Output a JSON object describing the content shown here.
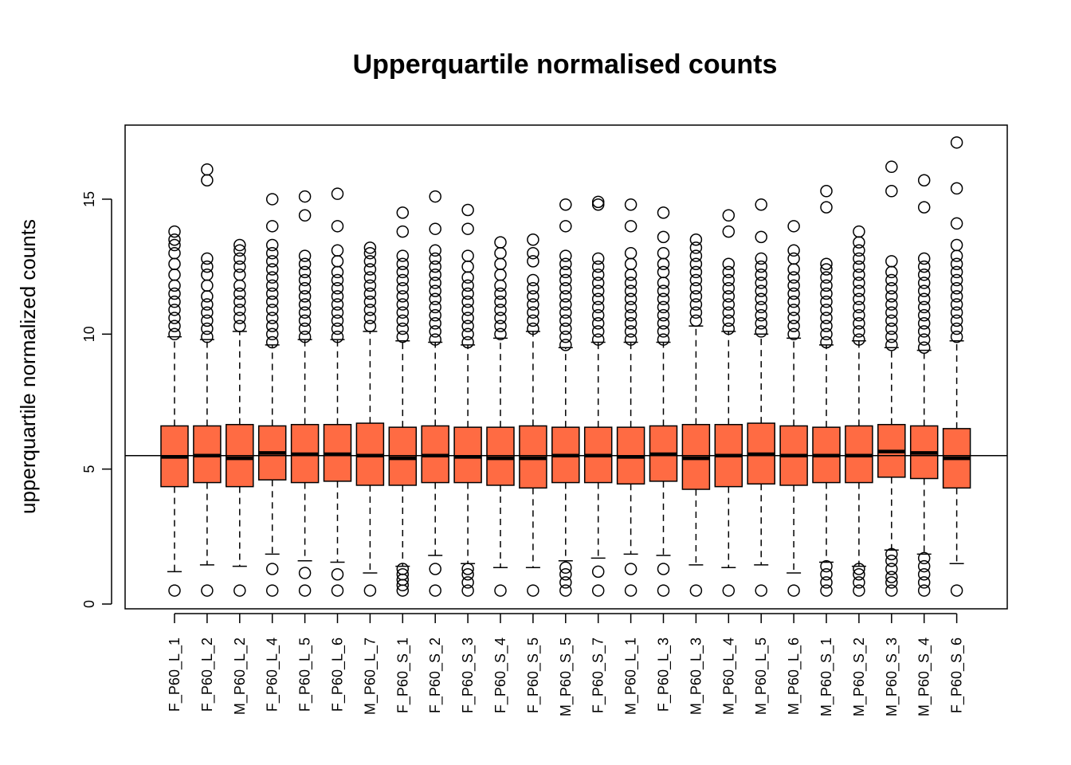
{
  "chart_data": {
    "type": "boxplot",
    "title": "Upperquartile normalised counts",
    "xlabel": "",
    "ylabel": "upperquartile normalized counts",
    "ylim": [
      -0.1,
      17.5
    ],
    "yticks": [
      0,
      5,
      10,
      15
    ],
    "grid": false,
    "legend": "none",
    "reference_line": 5.5,
    "box_color": "#ff6b43",
    "categories": [
      "F_P60_L_1",
      "F_P60_L_2",
      "M_P60_L_2",
      "F_P60_L_4",
      "F_P60_L_5",
      "F_P60_L_6",
      "M_P60_L_7",
      "F_P60_S_1",
      "F_P60_S_2",
      "F_P60_S_3",
      "F_P60_S_4",
      "F_P60_S_5",
      "M_P60_S_5",
      "F_P60_S_7",
      "M_P60_L_1",
      "F_P60_L_3",
      "M_P60_L_3",
      "M_P60_L_4",
      "M_P60_L_5",
      "M_P60_L_6",
      "M_P60_S_1",
      "M_P60_S_2",
      "M_P60_S_3",
      "M_P60_S_4",
      "F_P60_S_6"
    ],
    "boxes": [
      {
        "lower_whisker": 1.2,
        "q1": 4.35,
        "median": 5.45,
        "q3": 6.6,
        "upper_whisker": 9.9,
        "outliers_high": [
          10,
          10.3,
          10.6,
          10.9,
          11.2,
          11.5,
          11.8,
          12.2,
          12.6,
          13.0,
          13.3,
          13.5,
          13.8
        ],
        "outliers_low": [
          0.5
        ]
      },
      {
        "lower_whisker": 1.45,
        "q1": 4.5,
        "median": 5.5,
        "q3": 6.6,
        "upper_whisker": 9.8,
        "outliers_high": [
          9.9,
          10.2,
          10.5,
          10.8,
          11.1,
          11.4,
          11.8,
          12.2,
          12.5,
          12.8,
          15.7,
          16.1
        ],
        "outliers_low": [
          0.5
        ]
      },
      {
        "lower_whisker": 1.4,
        "q1": 4.35,
        "median": 5.4,
        "q3": 6.65,
        "upper_whisker": 10.1,
        "outliers_high": [
          10.3,
          10.6,
          10.9,
          11.2,
          11.5,
          11.8,
          12.2,
          12.5,
          12.8,
          13.1,
          13.3
        ],
        "outliers_low": [
          0.5
        ]
      },
      {
        "lower_whisker": 1.85,
        "q1": 4.6,
        "median": 5.6,
        "q3": 6.6,
        "upper_whisker": 9.6,
        "outliers_high": [
          9.7,
          10,
          10.3,
          10.6,
          10.9,
          11.2,
          11.5,
          11.8,
          12.1,
          12.4,
          12.7,
          13.0,
          13.3,
          14.0,
          15.0
        ],
        "outliers_low": [
          1.3,
          0.5
        ]
      },
      {
        "lower_whisker": 1.6,
        "q1": 4.5,
        "median": 5.55,
        "q3": 6.65,
        "upper_whisker": 9.8,
        "outliers_high": [
          9.9,
          10.2,
          10.5,
          10.8,
          11.1,
          11.4,
          11.7,
          12.0,
          12.3,
          12.6,
          12.9,
          14.4,
          15.1
        ],
        "outliers_low": [
          1.15,
          0.5
        ]
      },
      {
        "lower_whisker": 1.55,
        "q1": 4.55,
        "median": 5.55,
        "q3": 6.65,
        "upper_whisker": 9.8,
        "outliers_high": [
          9.9,
          10.2,
          10.5,
          10.8,
          11.1,
          11.4,
          11.7,
          12.0,
          12.3,
          12.7,
          13.1,
          14.0,
          15.2
        ],
        "outliers_low": [
          1.1,
          0.5
        ]
      },
      {
        "lower_whisker": 1.15,
        "q1": 4.4,
        "median": 5.5,
        "q3": 6.7,
        "upper_whisker": 10.1,
        "outliers_high": [
          10.3,
          10.6,
          10.9,
          11.2,
          11.5,
          11.8,
          12.1,
          12.4,
          12.7,
          13.0,
          13.2
        ],
        "outliers_low": [
          0.5
        ]
      },
      {
        "lower_whisker": 1.4,
        "q1": 4.4,
        "median": 5.4,
        "q3": 6.55,
        "upper_whisker": 9.75,
        "outliers_high": [
          9.9,
          10.2,
          10.5,
          10.8,
          11.1,
          11.4,
          11.7,
          12.0,
          12.3,
          12.6,
          12.9,
          13.8,
          14.5
        ],
        "outliers_low": [
          1.3,
          1.1,
          0.9,
          0.7,
          0.5
        ]
      },
      {
        "lower_whisker": 1.8,
        "q1": 4.5,
        "median": 5.5,
        "q3": 6.6,
        "upper_whisker": 9.7,
        "outliers_high": [
          9.8,
          10.1,
          10.4,
          10.7,
          11.0,
          11.3,
          11.6,
          11.9,
          12.2,
          12.5,
          12.8,
          13.1,
          13.9,
          15.1
        ],
        "outliers_low": [
          1.3,
          0.5
        ]
      },
      {
        "lower_whisker": 1.5,
        "q1": 4.5,
        "median": 5.45,
        "q3": 6.55,
        "upper_whisker": 9.6,
        "outliers_high": [
          9.7,
          10.0,
          10.3,
          10.6,
          10.9,
          11.2,
          11.5,
          11.8,
          12.1,
          12.5,
          12.9,
          13.9,
          14.6
        ],
        "outliers_low": [
          1.3,
          1.1,
          0.8,
          0.5
        ]
      },
      {
        "lower_whisker": 1.35,
        "q1": 4.4,
        "median": 5.4,
        "q3": 6.55,
        "upper_whisker": 9.85,
        "outliers_high": [
          10.0,
          10.3,
          10.6,
          10.9,
          11.2,
          11.5,
          11.8,
          12.2,
          12.6,
          13.0,
          13.4
        ],
        "outliers_low": [
          0.5
        ]
      },
      {
        "lower_whisker": 1.35,
        "q1": 4.3,
        "median": 5.4,
        "q3": 6.6,
        "upper_whisker": 10.1,
        "outliers_high": [
          10.2,
          10.5,
          10.8,
          11.1,
          11.4,
          11.7,
          12.0,
          12.7,
          13.0,
          13.5
        ],
        "outliers_low": [
          0.5
        ]
      },
      {
        "lower_whisker": 1.6,
        "q1": 4.5,
        "median": 5.5,
        "q3": 6.55,
        "upper_whisker": 9.5,
        "outliers_high": [
          9.6,
          9.9,
          10.2,
          10.5,
          10.8,
          11.1,
          11.4,
          11.7,
          12.0,
          12.3,
          12.6,
          12.9,
          14.0,
          14.8
        ],
        "outliers_low": [
          1.35,
          1.1,
          0.8,
          0.5
        ]
      },
      {
        "lower_whisker": 1.7,
        "q1": 4.5,
        "median": 5.5,
        "q3": 6.55,
        "upper_whisker": 9.7,
        "outliers_high": [
          9.8,
          10.1,
          10.4,
          10.7,
          11.0,
          11.3,
          11.6,
          11.9,
          12.2,
          12.5,
          12.8,
          14.8,
          14.9
        ],
        "outliers_low": [
          1.2,
          0.5
        ]
      },
      {
        "lower_whisker": 1.85,
        "q1": 4.45,
        "median": 5.45,
        "q3": 6.55,
        "upper_whisker": 9.7,
        "outliers_high": [
          9.8,
          10.1,
          10.4,
          10.7,
          11.0,
          11.3,
          11.6,
          11.9,
          12.2,
          12.6,
          13.0,
          14.0,
          14.8
        ],
        "outliers_low": [
          1.3,
          0.5
        ]
      },
      {
        "lower_whisker": 1.8,
        "q1": 4.55,
        "median": 5.55,
        "q3": 6.6,
        "upper_whisker": 9.7,
        "outliers_high": [
          9.8,
          10.1,
          10.4,
          10.7,
          11.0,
          11.3,
          11.6,
          11.9,
          12.3,
          12.6,
          13.0,
          13.6,
          14.5
        ],
        "outliers_low": [
          1.3,
          0.5
        ]
      },
      {
        "lower_whisker": 1.45,
        "q1": 4.25,
        "median": 5.4,
        "q3": 6.65,
        "upper_whisker": 10.3,
        "outliers_high": [
          10.5,
          10.8,
          11.1,
          11.4,
          11.7,
          12.0,
          12.3,
          12.6,
          12.9,
          13.2,
          13.5
        ],
        "outliers_low": [
          0.5
        ]
      },
      {
        "lower_whisker": 1.35,
        "q1": 4.35,
        "median": 5.5,
        "q3": 6.65,
        "upper_whisker": 10.1,
        "outliers_high": [
          10.2,
          10.5,
          10.8,
          11.1,
          11.4,
          11.7,
          12.0,
          12.3,
          12.6,
          13.8,
          14.4
        ],
        "outliers_low": [
          0.5
        ]
      },
      {
        "lower_whisker": 1.45,
        "q1": 4.45,
        "median": 5.55,
        "q3": 6.7,
        "upper_whisker": 10.0,
        "outliers_high": [
          10.1,
          10.4,
          10.7,
          11.0,
          11.3,
          11.6,
          11.9,
          12.2,
          12.5,
          12.8,
          13.6,
          14.8
        ],
        "outliers_low": [
          0.5
        ]
      },
      {
        "lower_whisker": 1.15,
        "q1": 4.4,
        "median": 5.5,
        "q3": 6.6,
        "upper_whisker": 9.85,
        "outliers_high": [
          10.0,
          10.3,
          10.6,
          10.9,
          11.2,
          11.5,
          11.8,
          12.1,
          12.4,
          12.8,
          13.1,
          14.0
        ],
        "outliers_low": [
          0.5
        ]
      },
      {
        "lower_whisker": 1.55,
        "q1": 4.5,
        "median": 5.5,
        "q3": 6.55,
        "upper_whisker": 9.6,
        "outliers_high": [
          9.7,
          10.0,
          10.3,
          10.6,
          10.9,
          11.2,
          11.5,
          11.8,
          12.1,
          12.4,
          12.6,
          14.7,
          15.3
        ],
        "outliers_low": [
          1.4,
          1.1,
          0.8,
          0.5
        ]
      },
      {
        "lower_whisker": 1.4,
        "q1": 4.5,
        "median": 5.5,
        "q3": 6.6,
        "upper_whisker": 9.75,
        "outliers_high": [
          9.8,
          10.1,
          10.4,
          10.7,
          11.0,
          11.3,
          11.6,
          11.9,
          12.2,
          12.5,
          12.8,
          13.1,
          13.4,
          13.8
        ],
        "outliers_low": [
          1.3,
          1.1,
          0.8,
          0.5
        ]
      },
      {
        "lower_whisker": 2.0,
        "q1": 4.7,
        "median": 5.65,
        "q3": 6.65,
        "upper_whisker": 9.5,
        "outliers_high": [
          9.6,
          9.9,
          10.2,
          10.5,
          10.8,
          11.1,
          11.4,
          11.7,
          12.0,
          12.3,
          12.7,
          15.3,
          16.2
        ],
        "outliers_low": [
          1.85,
          1.6,
          1.3,
          1.0,
          0.8,
          0.5
        ]
      },
      {
        "lower_whisker": 1.85,
        "q1": 4.65,
        "median": 5.6,
        "q3": 6.6,
        "upper_whisker": 9.4,
        "outliers_high": [
          9.5,
          9.8,
          10.1,
          10.4,
          10.7,
          11.0,
          11.3,
          11.6,
          11.9,
          12.2,
          12.5,
          12.8,
          14.7,
          15.7
        ],
        "outliers_low": [
          1.7,
          1.4,
          1.1,
          0.8,
          0.5
        ]
      },
      {
        "lower_whisker": 1.5,
        "q1": 4.3,
        "median": 5.4,
        "q3": 6.5,
        "upper_whisker": 9.75,
        "outliers_high": [
          9.9,
          10.2,
          10.5,
          10.8,
          11.1,
          11.4,
          11.7,
          12.0,
          12.3,
          12.6,
          12.9,
          13.3,
          14.1,
          15.4,
          17.1
        ],
        "outliers_low": [
          0.5
        ]
      }
    ]
  }
}
